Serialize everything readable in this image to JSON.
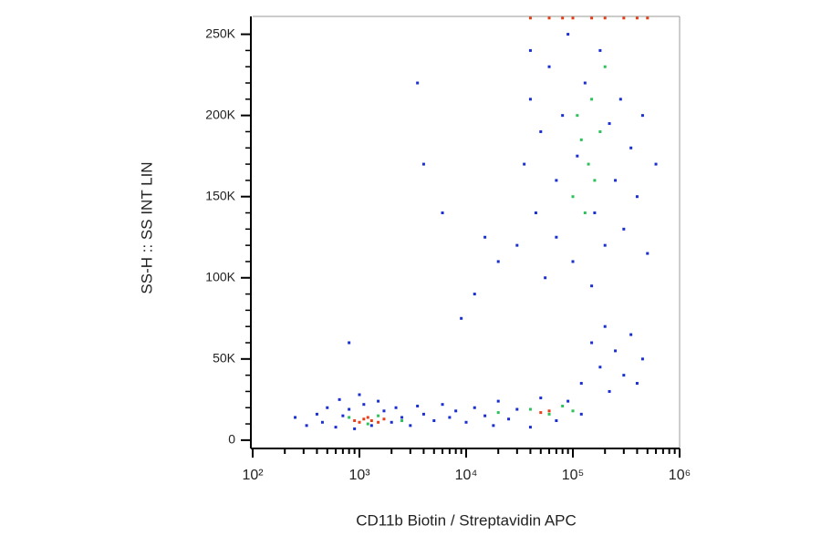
{
  "chart_data": {
    "type": "scatter",
    "xlabel": "CD11b Biotin / Streptavidin APC",
    "ylabel": "SS-H :: SS INT LIN",
    "xscale": "log",
    "xlim": [
      100,
      1000000
    ],
    "xticks": [
      {
        "value": 100,
        "label": "10²"
      },
      {
        "value": 1000,
        "label": "10³"
      },
      {
        "value": 10000,
        "label": "10⁴"
      },
      {
        "value": 100000,
        "label": "10⁵"
      },
      {
        "value": 1000000,
        "label": "10⁶"
      }
    ],
    "ylim": [
      -4000,
      261000
    ],
    "yticks": [
      0,
      {
        "value": 50000,
        "label": "50K"
      },
      {
        "value": 100000,
        "label": "100K"
      },
      {
        "value": 150000,
        "label": "150K"
      },
      {
        "value": 200000,
        "label": "200K"
      },
      {
        "value": 250000,
        "label": "250K"
      }
    ],
    "series": [
      {
        "color": "#1a2fd0",
        "x": [
          250,
          320,
          400,
          450,
          500,
          600,
          650,
          700,
          800,
          900,
          1000,
          1100,
          1300,
          1500,
          1700,
          2000,
          2200,
          2500,
          3000,
          3500,
          4000,
          5000,
          6000,
          7000,
          8000,
          10000,
          12000,
          15000,
          18000,
          20000,
          25000,
          30000,
          40000,
          50000,
          70000,
          90000,
          120000,
          800,
          3500,
          6000,
          12000,
          9000,
          4000,
          15000,
          20000,
          30000,
          35000,
          40000,
          40000,
          45000,
          50000,
          55000,
          60000,
          70000,
          70000,
          80000,
          90000,
          100000,
          110000,
          130000,
          150000,
          160000,
          180000,
          200000,
          220000,
          250000,
          280000,
          300000,
          350000,
          400000,
          450000,
          500000,
          600000,
          120000,
          150000,
          180000,
          200000,
          220000,
          250000,
          300000,
          350000,
          400000,
          450000
        ],
        "y": [
          14000,
          9000,
          16000,
          11000,
          20000,
          8000,
          25000,
          15000,
          19000,
          7000,
          28000,
          22000,
          9000,
          24000,
          18000,
          11000,
          20000,
          14000,
          9000,
          21000,
          16000,
          12000,
          22000,
          14000,
          18000,
          11000,
          20000,
          15000,
          9000,
          24000,
          13000,
          19000,
          8000,
          26000,
          12000,
          24000,
          16000,
          60000,
          220000,
          140000,
          90000,
          75000,
          170000,
          125000,
          110000,
          120000,
          170000,
          210000,
          240000,
          140000,
          190000,
          100000,
          230000,
          160000,
          125000,
          200000,
          250000,
          110000,
          175000,
          220000,
          95000,
          140000,
          240000,
          120000,
          195000,
          160000,
          210000,
          130000,
          180000,
          150000,
          200000,
          115000,
          170000,
          35000,
          60000,
          45000,
          70000,
          30000,
          55000,
          40000,
          65000,
          35000,
          50000
        ]
      },
      {
        "color": "#2ec05a",
        "x": [
          1200,
          1500,
          800,
          2500,
          20000,
          40000,
          60000,
          80000,
          100000,
          100000,
          120000,
          140000,
          150000,
          110000,
          160000,
          180000,
          130000,
          200000
        ],
        "y": [
          10000,
          15000,
          14000,
          12000,
          17000,
          19000,
          16000,
          21000,
          18000,
          150000,
          185000,
          170000,
          210000,
          200000,
          160000,
          190000,
          140000,
          230000
        ]
      },
      {
        "color": "#e8401a",
        "x": [
          900,
          1000,
          1100,
          1300,
          1500,
          1700,
          1200,
          60000,
          50000,
          40000,
          60000,
          80000,
          100000,
          150000,
          200000,
          300000,
          400000,
          500000
        ],
        "y": [
          12000,
          11000,
          13000,
          12000,
          11000,
          13000,
          14000,
          18000,
          17000,
          260000,
          260000,
          260000,
          260000,
          260000,
          260000,
          260000,
          260000,
          260000
        ]
      }
    ]
  }
}
